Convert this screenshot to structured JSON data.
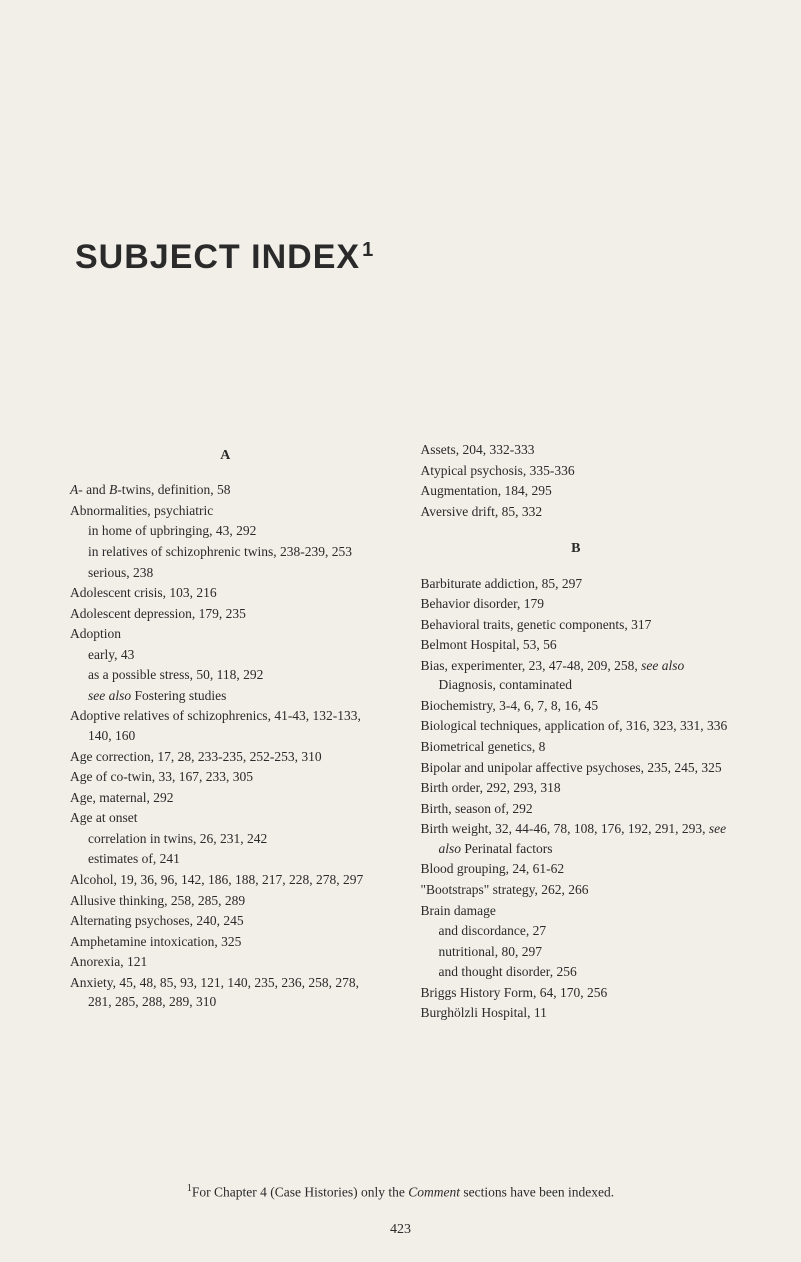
{
  "page": {
    "title": "SUBJECT INDEX",
    "title_sup": "1",
    "background_color": "#f2efe8",
    "text_color": "#2a2a2a",
    "body_fontsize": 13.5,
    "title_fontsize": 34,
    "page_number": "423"
  },
  "footnote": {
    "sup": "1",
    "text_before": "For Chapter 4 (Case Histories) only the ",
    "italic": "Comment",
    "text_after": " sections have been indexed."
  },
  "left_column": {
    "section": "A",
    "entries": [
      {
        "level": 0,
        "html": "<span class=\"italic\">A</span>- and <span class=\"italic\">B</span>-twins, definition, 58"
      },
      {
        "level": 0,
        "text": "Abnormalities, psychiatric"
      },
      {
        "level": 1,
        "text": "in home of upbringing, 43, 292"
      },
      {
        "level": 1,
        "text": "in relatives of schizophrenic twins, 238-239, 253"
      },
      {
        "level": 1,
        "text": "serious, 238"
      },
      {
        "level": 0,
        "text": "Adolescent crisis, 103, 216"
      },
      {
        "level": 0,
        "text": "Adolescent depression, 179, 235"
      },
      {
        "level": 0,
        "text": "Adoption"
      },
      {
        "level": 1,
        "text": "early, 43"
      },
      {
        "level": 1,
        "text": "as a possible stress, 50, 118, 292"
      },
      {
        "level": 1,
        "html": "<span class=\"italic\">see also</span> Fostering studies"
      },
      {
        "level": 0,
        "text": "Adoptive relatives of schizophrenics, 41-43, 132-133, 140, 160"
      },
      {
        "level": 0,
        "text": "Age correction, 17, 28, 233-235, 252-253, 310"
      },
      {
        "level": 0,
        "text": "Age of co-twin, 33, 167, 233, 305"
      },
      {
        "level": 0,
        "text": "Age, maternal, 292"
      },
      {
        "level": 0,
        "text": "Age at onset"
      },
      {
        "level": 1,
        "text": "correlation in twins, 26, 231, 242"
      },
      {
        "level": 1,
        "text": "estimates of, 241"
      },
      {
        "level": 0,
        "text": "Alcohol, 19, 36, 96, 142, 186, 188, 217, 228, 278, 297"
      },
      {
        "level": 0,
        "text": "Allusive thinking, 258, 285, 289"
      },
      {
        "level": 0,
        "text": "Alternating psychoses, 240, 245"
      },
      {
        "level": 0,
        "text": "Amphetamine intoxication, 325"
      },
      {
        "level": 0,
        "text": "Anorexia, 121"
      },
      {
        "level": 0,
        "text": "Anxiety, 45, 48, 85, 93, 121, 140, 235, 236, 258, 278, 281, 285, 288, 289, 310"
      }
    ]
  },
  "right_column": {
    "section_b": "B",
    "top_entries": [
      {
        "level": 0,
        "text": "Assets, 204, 332-333"
      },
      {
        "level": 0,
        "text": "Atypical psychosis, 335-336"
      },
      {
        "level": 0,
        "text": "Augmentation, 184, 295"
      },
      {
        "level": 0,
        "text": "Aversive drift, 85, 332"
      }
    ],
    "b_entries": [
      {
        "level": 0,
        "text": "Barbiturate addiction, 85, 297"
      },
      {
        "level": 0,
        "text": "Behavior disorder, 179"
      },
      {
        "level": 0,
        "text": "Behavioral traits, genetic components, 317"
      },
      {
        "level": 0,
        "text": "Belmont Hospital, 53, 56"
      },
      {
        "level": 0,
        "html": "Bias, experimenter, 23, 47-48, 209, 258, <span class=\"italic\">see also</span> Diagnosis, contaminated"
      },
      {
        "level": 0,
        "text": "Biochemistry, 3-4, 6, 7, 8, 16, 45"
      },
      {
        "level": 0,
        "text": "Biological techniques, application of, 316, 323, 331, 336"
      },
      {
        "level": 0,
        "text": "Biometrical genetics, 8"
      },
      {
        "level": 0,
        "text": "Bipolar and unipolar affective psychoses, 235, 245, 325"
      },
      {
        "level": 0,
        "text": "Birth order, 292, 293, 318"
      },
      {
        "level": 0,
        "text": "Birth, season of, 292"
      },
      {
        "level": 0,
        "html": "Birth weight, 32, 44-46, 78, 108, 176, 192, 291, 293, <span class=\"italic\">see also</span> Perinatal factors"
      },
      {
        "level": 0,
        "text": "Blood grouping, 24, 61-62"
      },
      {
        "level": 0,
        "text": "\"Bootstraps\" strategy, 262, 266"
      },
      {
        "level": 0,
        "text": "Brain damage"
      },
      {
        "level": 1,
        "text": "and discordance, 27"
      },
      {
        "level": 1,
        "text": "nutritional, 80, 297"
      },
      {
        "level": 1,
        "text": "and thought disorder, 256"
      },
      {
        "level": 0,
        "text": "Briggs History Form, 64, 170, 256"
      },
      {
        "level": 0,
        "text": "Burghölzli Hospital, 11"
      }
    ]
  }
}
